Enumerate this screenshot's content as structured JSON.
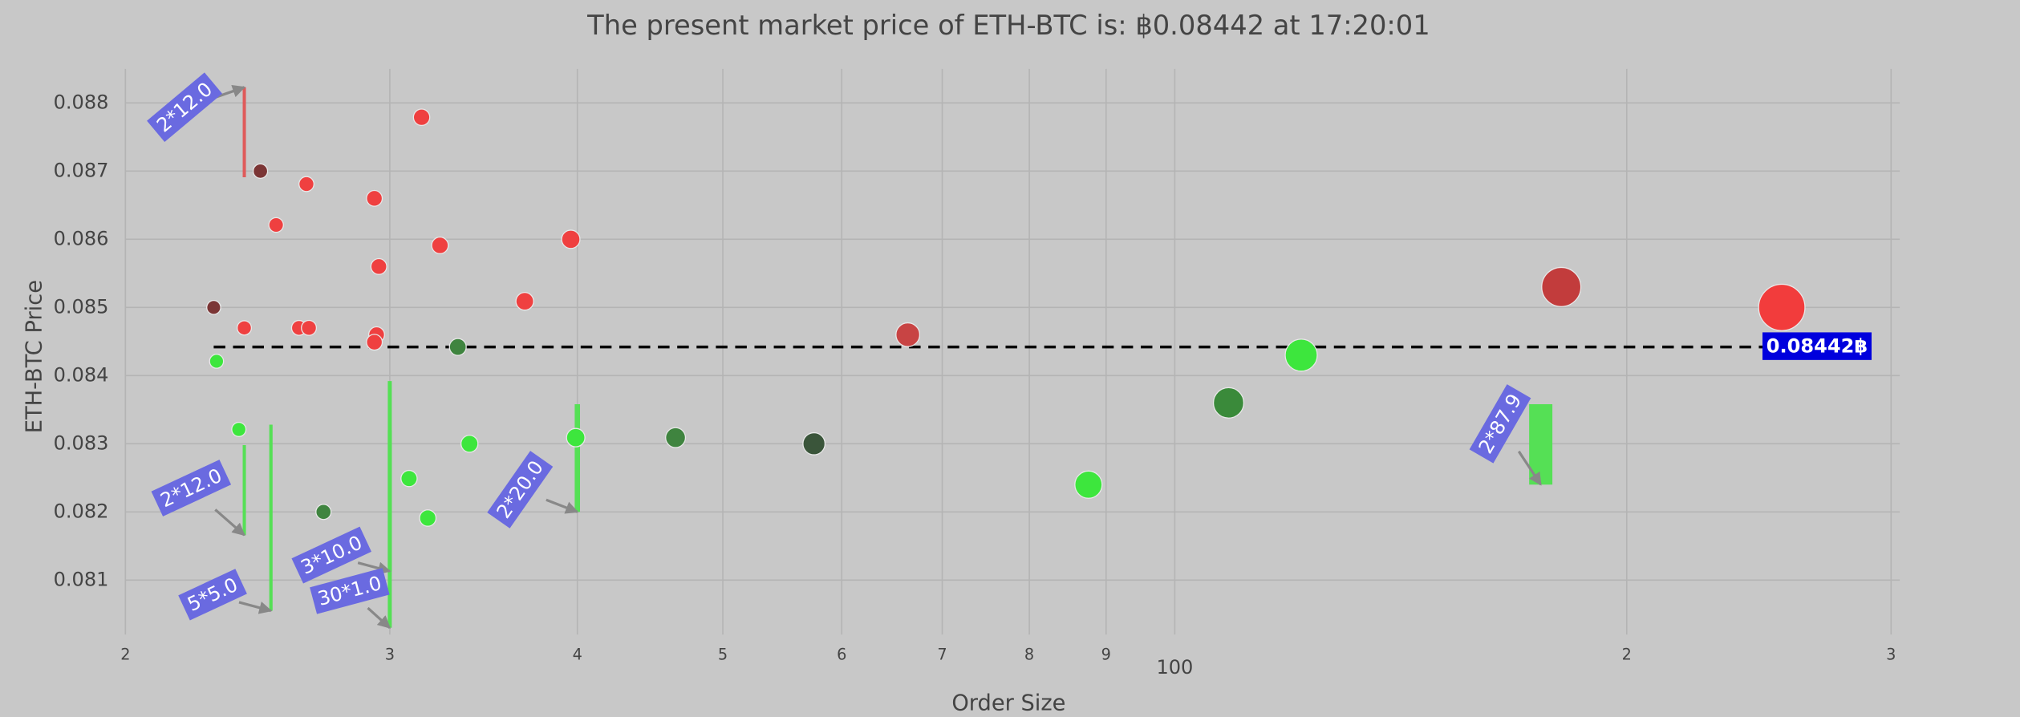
{
  "chart_data": {
    "type": "scatter",
    "title": "The present market price of ETH-BTC is: ฿0.08442 at 17:20:01",
    "x_label": "Order Size",
    "y_label": "ETH-BTC Price",
    "log_x": true,
    "grid": true,
    "xlim": [
      20,
      304
    ],
    "ylim": [
      0.0802,
      0.0885
    ],
    "xticks": [
      {
        "value": 20,
        "label": "2"
      },
      {
        "value": 30,
        "label": "3"
      },
      {
        "value": 40,
        "label": "4"
      },
      {
        "value": 50,
        "label": "5"
      },
      {
        "value": 60,
        "label": "6"
      },
      {
        "value": 70,
        "label": "7"
      },
      {
        "value": 80,
        "label": "8"
      },
      {
        "value": 90,
        "label": "9"
      },
      100,
      {
        "value": 200,
        "label": "2"
      },
      {
        "value": 300,
        "label": "3"
      }
    ],
    "yticks": [
      0.081,
      0.082,
      0.083,
      0.084,
      0.085,
      0.086,
      0.087,
      0.088
    ],
    "series": [
      {
        "x": [
          31.5,
          24.6,
          26.4,
          29.3,
          25.2,
          29.5,
          32.4,
          39.6,
          36.9,
          22.9,
          24.0,
          26.1,
          26.5,
          29.4,
          29.3,
          66.4,
          180.9,
          253.7,
          23.0,
          23.8,
          33.3,
          27.1,
          30.9,
          31.8,
          33.9,
          39.9,
          46.5,
          57.5,
          87.6,
          108.6,
          121.4
        ],
        "values": [
          0.08779,
          0.087,
          0.08681,
          0.0866,
          0.08621,
          0.0856,
          0.08591,
          0.086,
          0.08509,
          0.085,
          0.0847,
          0.0847,
          0.0847,
          0.0846,
          0.08449,
          0.0846,
          0.0853,
          0.085,
          0.08421,
          0.08321,
          0.08442,
          0.082,
          0.08249,
          0.08191,
          0.083,
          0.08309,
          0.08309,
          0.083,
          0.0824,
          0.0836,
          0.0843
        ],
        "colors": [
          "#ef4040",
          "#7b3535",
          "#ef4040",
          "#ef4040",
          "#ef4040",
          "#ef4040",
          "#ef4040",
          "#ef4040",
          "#ef4040",
          "#7b3535",
          "#ef4040",
          "#ef4040",
          "#ef4040",
          "#ef4040",
          "#ef4040",
          "#c84444",
          "#c23c3c",
          "#f23c3c",
          "#3de63d",
          "#3de63d",
          "#3f843f",
          "#3f843f",
          "#3de63d",
          "#3de63d",
          "#3de63d",
          "#3de63d",
          "#3f843f",
          "#3a553a",
          "#3de63d",
          "#3a8a3a",
          "#3de63d"
        ]
      }
    ],
    "price": 0.08442,
    "price_label": "0.08442฿",
    "price_label_color": "#0000dd",
    "walls": [
      {
        "label": "2*12.0",
        "x": 24.0,
        "low": 0.08691,
        "high": 0.08823,
        "color": "#e05a5a"
      },
      {
        "label": "2*12.0",
        "x": 24.0,
        "low": 0.08166,
        "high": 0.08298,
        "color": "#55e055"
      },
      {
        "label": "5*5.0",
        "x": 25.0,
        "low": 0.08055,
        "high": 0.08328,
        "color": "#55e055"
      },
      {
        "label": "3*10.0",
        "x": 30.0,
        "low": 0.08113,
        "high": 0.0832,
        "color": "#55e055"
      },
      {
        "label": "30*1.0",
        "x": 30.0,
        "low": 0.0803,
        "high": 0.08392,
        "color": "#55e055"
      },
      {
        "label": "2*20.0",
        "x": 40.0,
        "low": 0.082,
        "high": 0.08358,
        "color": "#55e055"
      },
      {
        "label": "2*87.9",
        "x": 175.3,
        "low": 0.0824,
        "high": 0.08358,
        "color": "#55e055"
      }
    ]
  }
}
